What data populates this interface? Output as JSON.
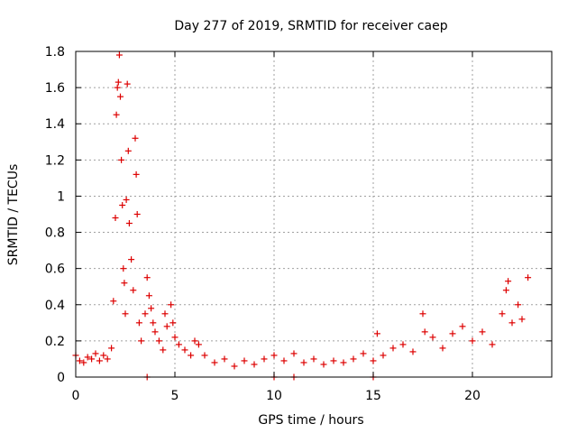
{
  "chart_data": {
    "type": "scatter",
    "title": "Day 277 of 2019, SRMTID for receiver caep",
    "xlabel": "GPS time / hours",
    "ylabel": "SRMTID / TECUs",
    "xlim": [
      0,
      24
    ],
    "ylim": [
      0,
      1.8
    ],
    "xticks": [
      0,
      5,
      10,
      15,
      20
    ],
    "xtick_labels": [
      "0",
      "5",
      "10",
      "15",
      "20"
    ],
    "yticks": [
      0,
      0.2,
      0.4,
      0.6,
      0.8,
      1,
      1.2,
      1.4,
      1.6,
      1.8
    ],
    "ytick_labels": [
      "0",
      "0.2",
      "0.4",
      "0.6",
      "0.8",
      "1",
      "1.2",
      "1.4",
      "1.6",
      "1.8"
    ],
    "grid": true,
    "marker": "+",
    "series": [
      {
        "name": "SRMTID",
        "color": "#dd0000",
        "points": [
          [
            0.0,
            0.12
          ],
          [
            0.2,
            0.09
          ],
          [
            0.4,
            0.08
          ],
          [
            0.6,
            0.11
          ],
          [
            0.8,
            0.1
          ],
          [
            1.0,
            0.13
          ],
          [
            1.2,
            0.09
          ],
          [
            1.4,
            0.12
          ],
          [
            1.6,
            0.1
          ],
          [
            1.8,
            0.16
          ],
          [
            1.9,
            0.42
          ],
          [
            2.0,
            0.88
          ],
          [
            2.05,
            1.45
          ],
          [
            2.1,
            1.6
          ],
          [
            2.15,
            1.63
          ],
          [
            2.2,
            1.78
          ],
          [
            2.25,
            1.55
          ],
          [
            2.3,
            1.2
          ],
          [
            2.35,
            0.95
          ],
          [
            2.4,
            0.6
          ],
          [
            2.45,
            0.52
          ],
          [
            2.5,
            0.35
          ],
          [
            2.55,
            0.98
          ],
          [
            2.6,
            1.62
          ],
          [
            2.65,
            1.25
          ],
          [
            2.7,
            0.85
          ],
          [
            2.8,
            0.65
          ],
          [
            2.9,
            0.48
          ],
          [
            3.0,
            1.32
          ],
          [
            3.05,
            1.12
          ],
          [
            3.1,
            0.9
          ],
          [
            3.2,
            0.3
          ],
          [
            3.3,
            0.2
          ],
          [
            3.5,
            0.35
          ],
          [
            3.6,
            0.55
          ],
          [
            3.7,
            0.45
          ],
          [
            3.8,
            0.38
          ],
          [
            3.9,
            0.3
          ],
          [
            4.0,
            0.25
          ],
          [
            4.2,
            0.2
          ],
          [
            4.4,
            0.15
          ],
          [
            4.5,
            0.35
          ],
          [
            4.6,
            0.28
          ],
          [
            4.8,
            0.4
          ],
          [
            4.9,
            0.3
          ],
          [
            5.0,
            0.22
          ],
          [
            5.2,
            0.18
          ],
          [
            5.5,
            0.15
          ],
          [
            5.8,
            0.12
          ],
          [
            6.0,
            0.2
          ],
          [
            6.2,
            0.18
          ],
          [
            6.5,
            0.12
          ],
          [
            7.0,
            0.08
          ],
          [
            7.5,
            0.1
          ],
          [
            8.0,
            0.06
          ],
          [
            8.5,
            0.09
          ],
          [
            9.0,
            0.07
          ],
          [
            9.5,
            0.1
          ],
          [
            10.0,
            0.12
          ],
          [
            10.5,
            0.09
          ],
          [
            11.0,
            0.13
          ],
          [
            11.5,
            0.08
          ],
          [
            12.0,
            0.1
          ],
          [
            12.5,
            0.07
          ],
          [
            13.0,
            0.09
          ],
          [
            13.5,
            0.08
          ],
          [
            14.0,
            0.1
          ],
          [
            14.5,
            0.13
          ],
          [
            15.0,
            0.09
          ],
          [
            15.2,
            0.24
          ],
          [
            15.5,
            0.12
          ],
          [
            16.0,
            0.16
          ],
          [
            16.5,
            0.18
          ],
          [
            17.0,
            0.14
          ],
          [
            17.5,
            0.35
          ],
          [
            17.6,
            0.25
          ],
          [
            18.0,
            0.22
          ],
          [
            18.5,
            0.16
          ],
          [
            19.0,
            0.24
          ],
          [
            19.5,
            0.28
          ],
          [
            20.0,
            0.2
          ],
          [
            20.5,
            0.25
          ],
          [
            21.0,
            0.18
          ],
          [
            21.5,
            0.35
          ],
          [
            21.7,
            0.48
          ],
          [
            21.8,
            0.53
          ],
          [
            22.0,
            0.3
          ],
          [
            22.3,
            0.4
          ],
          [
            22.5,
            0.32
          ],
          [
            22.8,
            0.55
          ],
          [
            3.6,
            0.0
          ],
          [
            10.0,
            0.0
          ],
          [
            11.0,
            0.0
          ],
          [
            15.0,
            0.0
          ]
        ]
      }
    ]
  }
}
